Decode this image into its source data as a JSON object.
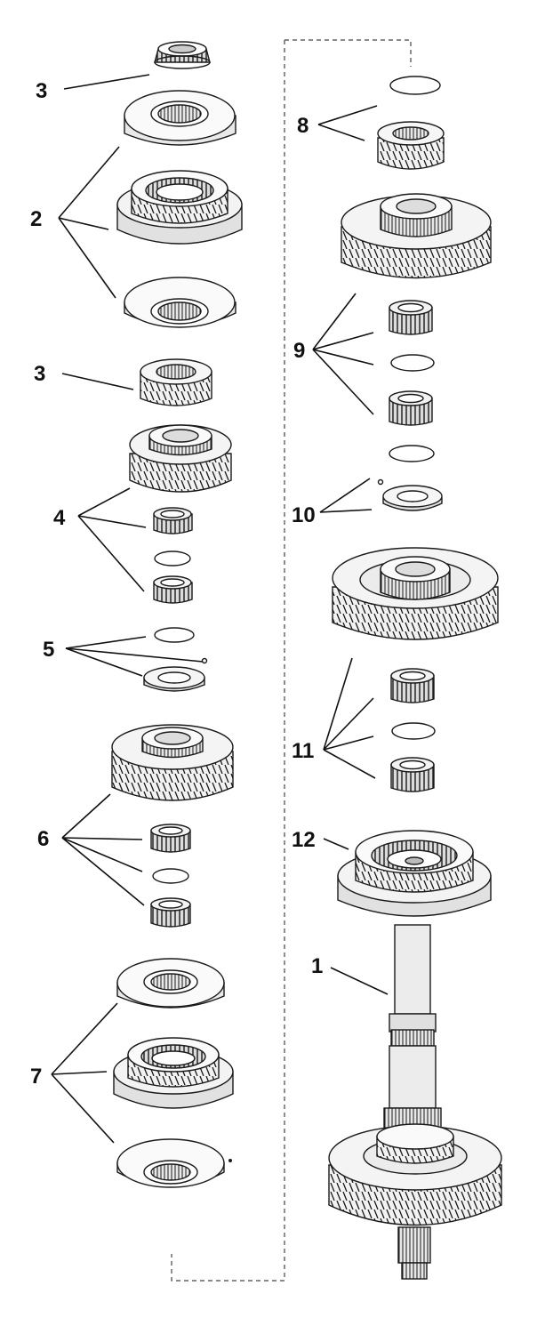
{
  "diagram": {
    "callouts": [
      {
        "id": "c3a",
        "label": "3"
      },
      {
        "id": "c2",
        "label": "2"
      },
      {
        "id": "c3b",
        "label": "3"
      },
      {
        "id": "c4",
        "label": "4"
      },
      {
        "id": "c5",
        "label": "5"
      },
      {
        "id": "c6",
        "label": "6"
      },
      {
        "id": "c7",
        "label": "7"
      },
      {
        "id": "c8",
        "label": "8"
      },
      {
        "id": "c9",
        "label": "9"
      },
      {
        "id": "c10",
        "label": "10"
      },
      {
        "id": "c11",
        "label": "11"
      },
      {
        "id": "c12",
        "label": "12"
      },
      {
        "id": "c1",
        "label": "1"
      }
    ]
  },
  "colors": {
    "ink": "#1a1a1a",
    "paper": "#ffffff",
    "metal": "#e6e6e6"
  }
}
